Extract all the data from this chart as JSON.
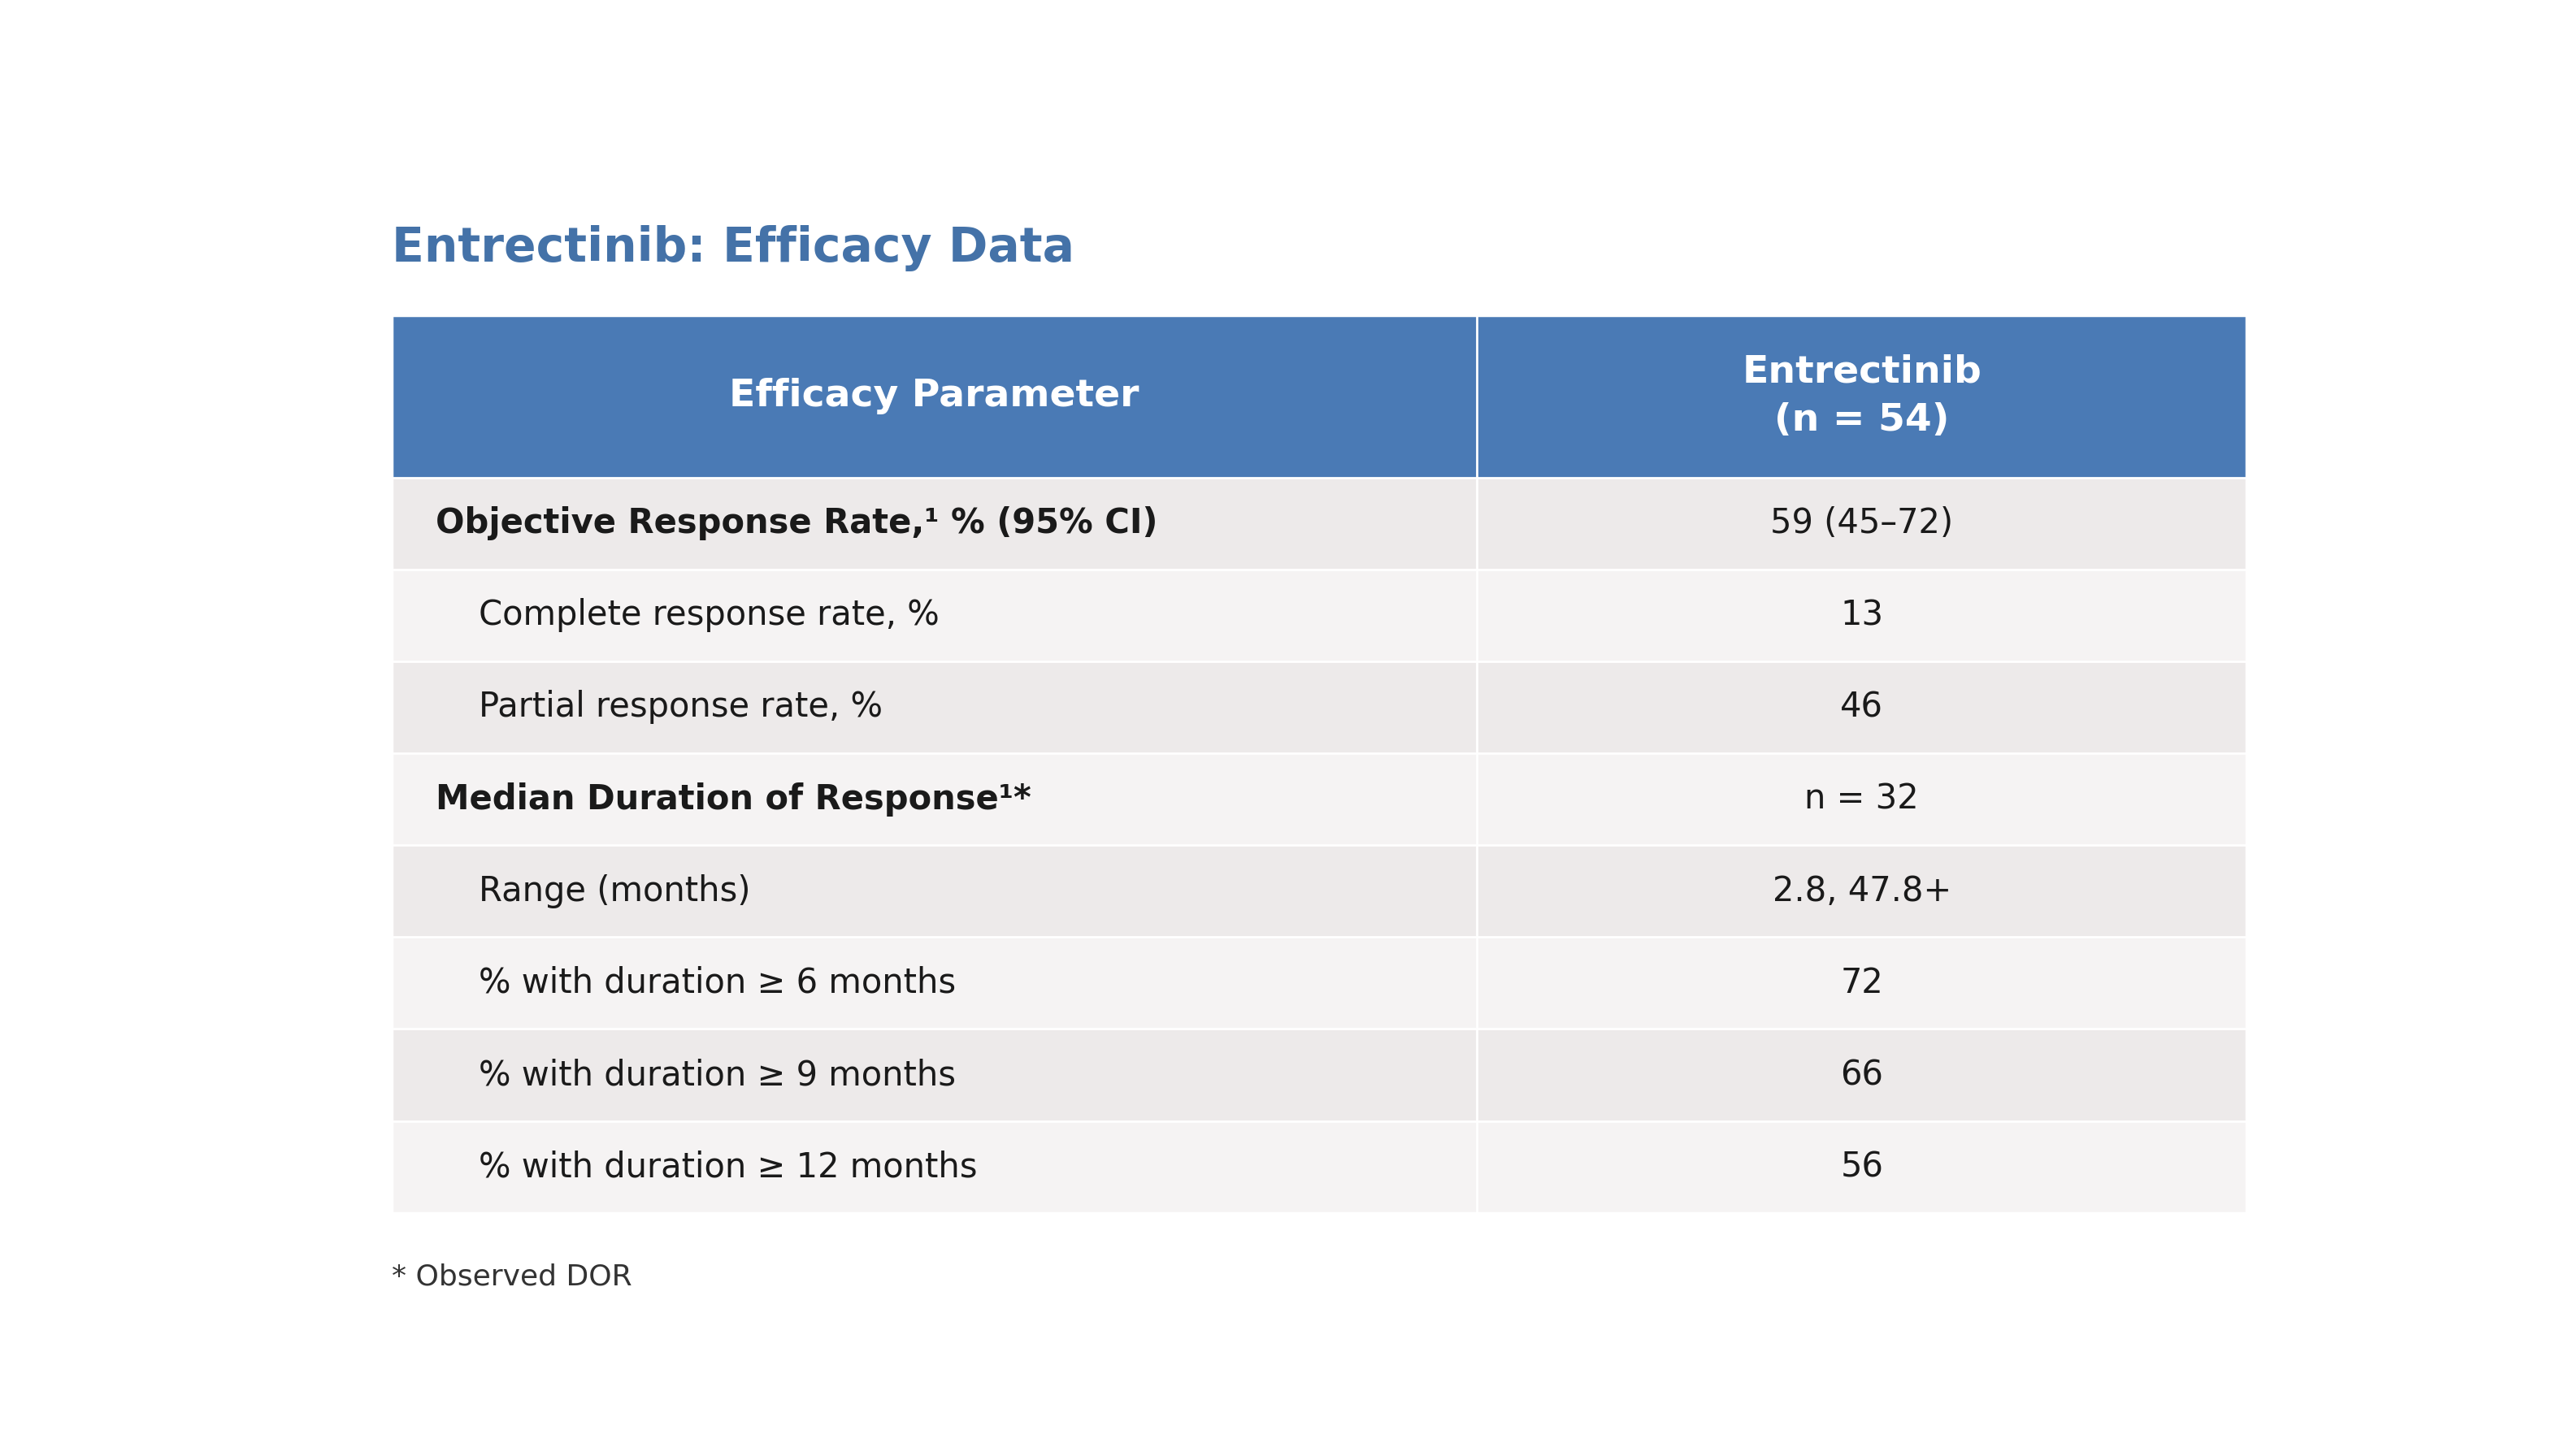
{
  "title": "Entrectinib: Efficacy Data",
  "title_color": "#4472a8",
  "title_fontsize": 42,
  "background_color": "#ffffff",
  "header_bg_color": "#4a7ab5",
  "header_text_color": "#ffffff",
  "header_col1": "Efficacy Parameter",
  "header_col2": "Entrectinib\n(n = 54)",
  "header_fontsize": 34,
  "row_fontsize": 30,
  "footnote": "* Observed DOR",
  "footnote_fontsize": 26,
  "col_split": 0.585,
  "rows": [
    {
      "col1": "Objective Response Rate,¹ % (95% CI)",
      "col2": "59 (45–72)",
      "bold_col1": true,
      "bg": "#edeaea"
    },
    {
      "col1": "    Complete response rate, %",
      "col2": "13",
      "bold_col1": false,
      "bg": "#f5f3f3"
    },
    {
      "col1": "    Partial response rate, %",
      "col2": "46",
      "bold_col1": false,
      "bg": "#edeaea"
    },
    {
      "col1": "Median Duration of Response¹*",
      "col2": "n = 32",
      "bold_col1": true,
      "bg": "#f5f3f3"
    },
    {
      "col1": "    Range (months)",
      "col2": "2.8, 47.8+",
      "bold_col1": false,
      "bg": "#edeaea"
    },
    {
      "col1": "    % with duration ≥ 6 months",
      "col2": "72",
      "bold_col1": false,
      "bg": "#f5f3f3"
    },
    {
      "col1": "    % with duration ≥ 9 months",
      "col2": "66",
      "bold_col1": false,
      "bg": "#edeaea"
    },
    {
      "col1": "    % with duration ≥ 12 months",
      "col2": "56",
      "bold_col1": false,
      "bg": "#f5f3f3"
    }
  ]
}
